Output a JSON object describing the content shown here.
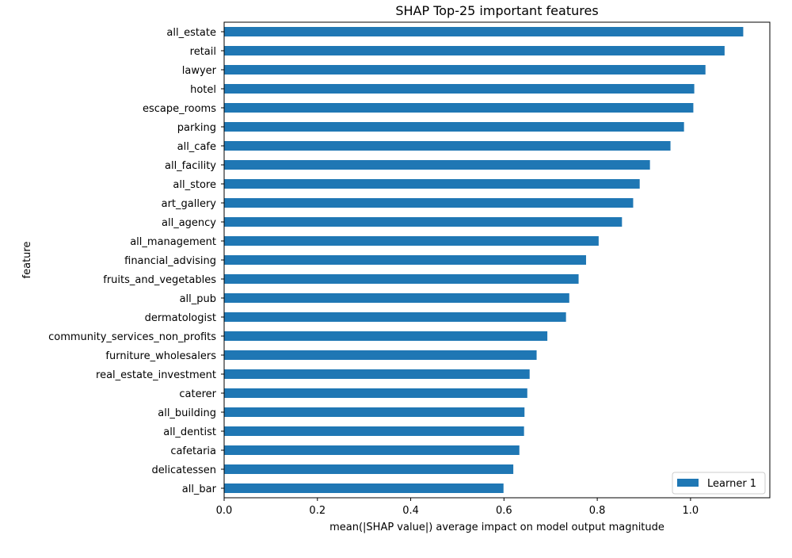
{
  "chart_data": {
    "type": "bar",
    "orientation": "horizontal",
    "title": "SHAP Top-25 important features",
    "xlabel": "mean(|SHAP value|) average impact on model output magnitude",
    "ylabel": "feature",
    "xlim": [
      0,
      1.17
    ],
    "xticks": [
      "0.0",
      "0.2",
      "0.4",
      "0.6",
      "0.8",
      "1.0"
    ],
    "xtick_values": [
      0,
      0.2,
      0.4,
      0.6,
      0.8,
      1.0
    ],
    "grid": false,
    "legend": {
      "position": "lower right",
      "entries": [
        "Learner 1"
      ]
    },
    "categories": [
      "all_estate",
      "retail",
      "lawyer",
      "hotel",
      "escape_rooms",
      "parking",
      "all_cafe",
      "all_facility",
      "all_store",
      "art_gallery",
      "all_agency",
      "all_management",
      "financial_advising",
      "fruits_and_vegetables",
      "all_pub",
      "dermatologist",
      "community_services_non_profits",
      "furniture_wholesalers",
      "real_estate_investment",
      "caterer",
      "all_building",
      "all_dentist",
      "cafetaria",
      "delicatessen",
      "all_bar"
    ],
    "series": [
      {
        "name": "Learner 1",
        "color": "#1f77b4",
        "values": [
          1.113,
          1.073,
          1.032,
          1.008,
          1.006,
          0.986,
          0.957,
          0.913,
          0.891,
          0.877,
          0.853,
          0.803,
          0.776,
          0.76,
          0.74,
          0.733,
          0.693,
          0.67,
          0.655,
          0.65,
          0.644,
          0.643,
          0.633,
          0.62,
          0.599
        ]
      }
    ]
  }
}
